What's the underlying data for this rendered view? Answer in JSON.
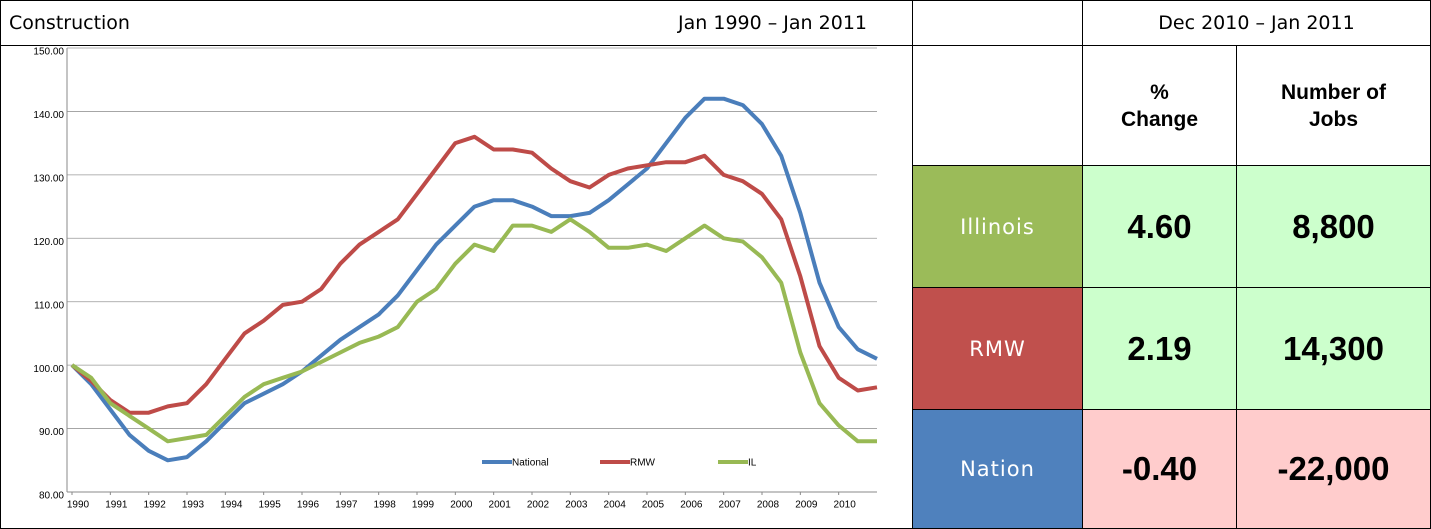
{
  "chart_data": {
    "type": "line",
    "title": "Construction",
    "subtitle": "Jan 1990 – Jan 2011",
    "x": [
      1990,
      1990.5,
      1991,
      1991.5,
      1992,
      1992.5,
      1993,
      1993.5,
      1994,
      1994.5,
      1995,
      1995.5,
      1996,
      1996.5,
      1997,
      1997.5,
      1998,
      1998.5,
      1999,
      1999.5,
      2000,
      2000.5,
      2001,
      2001.5,
      2002,
      2002.5,
      2003,
      2003.5,
      2004,
      2004.5,
      2005,
      2005.5,
      2006,
      2006.5,
      2007,
      2007.5,
      2008,
      2008.5,
      2009,
      2009.5,
      2010,
      2010.5,
      2011
    ],
    "xlim": [
      1990,
      2011
    ],
    "xticks": [
      1990,
      1991,
      1992,
      1993,
      1994,
      1995,
      1996,
      1997,
      1998,
      1999,
      2000,
      2001,
      2002,
      2003,
      2004,
      2005,
      2006,
      2007,
      2008,
      2009,
      2010
    ],
    "ylim": [
      80,
      150
    ],
    "yticks": [
      {
        "value": 80,
        "label": "80.00"
      },
      {
        "value": 90,
        "label": "90.00"
      },
      {
        "value": 100,
        "label": "100.00"
      },
      {
        "value": 110,
        "label": "110.00"
      },
      {
        "value": 120,
        "label": "120.00"
      },
      {
        "value": 130,
        "label": "130.00"
      },
      {
        "value": 140,
        "label": "140.00"
      },
      {
        "value": 150,
        "label": "150.00"
      }
    ],
    "grid": true,
    "series": [
      {
        "name": "National",
        "color": "#4a7ebb",
        "values": [
          100,
          97,
          93,
          89,
          86.5,
          85,
          85.5,
          88,
          91,
          94,
          95.5,
          97,
          99,
          101.5,
          104,
          106,
          108,
          111,
          115,
          119,
          122,
          125,
          126,
          126,
          125,
          123.5,
          123.5,
          124,
          126,
          128.5,
          131,
          135,
          139,
          142,
          142,
          141,
          138,
          133,
          124,
          113,
          106,
          102.5,
          101
        ]
      },
      {
        "name": "RMW",
        "color": "#be4b48",
        "values": [
          100,
          97.5,
          94.5,
          92.5,
          92.5,
          93.5,
          94,
          97,
          101,
          105,
          107,
          109.5,
          110,
          112,
          116,
          119,
          121,
          123,
          127,
          131,
          135,
          136,
          134,
          134,
          133.5,
          131,
          129,
          128,
          130,
          131,
          131.5,
          132,
          132,
          133,
          130,
          129,
          127,
          123,
          114,
          103,
          98,
          96,
          96.5
        ]
      },
      {
        "name": "IL",
        "color": "#98b954",
        "values": [
          100,
          98,
          94,
          92,
          90,
          88,
          88.5,
          89,
          92,
          95,
          97,
          98,
          99,
          100.5,
          102,
          103.5,
          104.5,
          106,
          110,
          112,
          116,
          119,
          118,
          122,
          122,
          121,
          123,
          121,
          118.5,
          118.5,
          119,
          118,
          120,
          122,
          120,
          119.5,
          117,
          113,
          102,
          94,
          90.5,
          88,
          88
        ]
      }
    ]
  },
  "table": {
    "period": "Dec 2010 – Jan 2011",
    "columns": [
      "% Change",
      "Number of Jobs"
    ],
    "rows": [
      [
        "Illinois",
        "4.60",
        "8,800"
      ],
      [
        "RMW",
        "2.19",
        "14,300"
      ],
      [
        "Nation",
        "-0.40",
        "-22,000"
      ]
    ]
  }
}
